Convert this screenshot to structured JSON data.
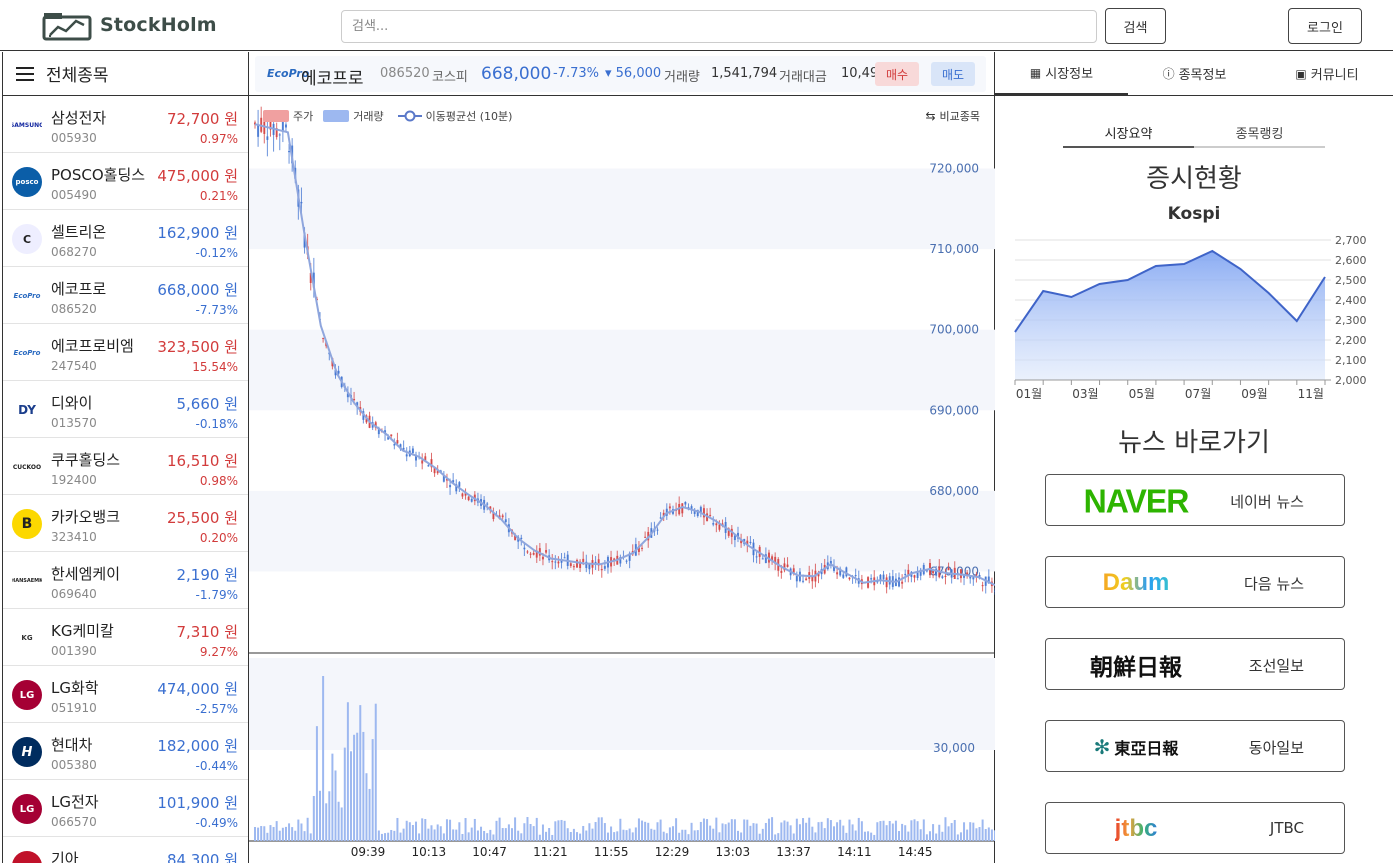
{
  "app": {
    "name": "StockHolm"
  },
  "header": {
    "search_placeholder": "검색...",
    "search_button": "검색",
    "login_button": "로그인"
  },
  "sidebar": {
    "title": "전체종목",
    "items": [
      {
        "name": "삼성전자",
        "code": "005930",
        "price": "72,700 원",
        "rate": "0.97%",
        "dir": "up",
        "logo": "SAMSUNG"
      },
      {
        "name": "POSCO홀딩스",
        "code": "005490",
        "price": "475,000 원",
        "rate": "0.21%",
        "dir": "up",
        "logo": "posco"
      },
      {
        "name": "셀트리온",
        "code": "068270",
        "price": "162,900 원",
        "rate": "-0.12%",
        "dir": "down",
        "logo": "C"
      },
      {
        "name": "에코프로",
        "code": "086520",
        "price": "668,000 원",
        "rate": "-7.73%",
        "dir": "down",
        "logo": "EcoPro"
      },
      {
        "name": "에코프로비엠",
        "code": "247540",
        "price": "323,500 원",
        "rate": "15.54%",
        "dir": "up",
        "logo": "EcoPro"
      },
      {
        "name": "디와이",
        "code": "013570",
        "price": "5,660 원",
        "rate": "-0.18%",
        "dir": "down",
        "logo": "DY"
      },
      {
        "name": "쿠쿠홀딩스",
        "code": "192400",
        "price": "16,510 원",
        "rate": "0.98%",
        "dir": "up",
        "logo": "CUCKOO"
      },
      {
        "name": "카카오뱅크",
        "code": "323410",
        "price": "25,500 원",
        "rate": "0.20%",
        "dir": "up",
        "logo": "B"
      },
      {
        "name": "한세엠케이",
        "code": "069640",
        "price": "2,190 원",
        "rate": "-1.79%",
        "dir": "down",
        "logo": "HANSAEMK"
      },
      {
        "name": "KG케미칼",
        "code": "001390",
        "price": "7,310 원",
        "rate": "9.27%",
        "dir": "up",
        "logo": "KG"
      },
      {
        "name": "LG화학",
        "code": "051910",
        "price": "474,000 원",
        "rate": "-2.57%",
        "dir": "down",
        "logo": "LG"
      },
      {
        "name": "현대차",
        "code": "005380",
        "price": "182,000 원",
        "rate": "-0.44%",
        "dir": "down",
        "logo": "H"
      },
      {
        "name": "LG전자",
        "code": "066570",
        "price": "101,900 원",
        "rate": "-0.49%",
        "dir": "down",
        "logo": "LG"
      },
      {
        "name": "기아",
        "code": "",
        "price": "84,300 원",
        "rate": "",
        "dir": "down",
        "logo": "KIA"
      }
    ]
  },
  "ticker": {
    "logo": "EcoPro",
    "name": "에코프로",
    "code": "086520",
    "market": "코스피",
    "price": "668,000",
    "rate": "-7.73%",
    "change": "▾ 56,000",
    "volume_label": "거래량",
    "volume": "1,541,794",
    "amount_label": "거래대금",
    "amount": "10,490",
    "buy": "매수",
    "sell": "매도"
  },
  "chart_legend": {
    "price": "주가",
    "volume": "거래량",
    "ma": "이동평균선 (10분)",
    "compare": "비교종목"
  },
  "chart_data": [
    {
      "type": "line",
      "series": [
        {
          "name": "주가",
          "kind": "candlestick"
        },
        {
          "name": "이동평균선 (10분)",
          "values": [
            725500,
            725000,
            724500,
            712000,
            700500,
            694500,
            691000,
            688500,
            687000,
            685000,
            684200,
            682800,
            681000,
            679500,
            678200,
            676400,
            674100,
            672600,
            671600,
            671300,
            671000,
            670900,
            671400,
            672300,
            674400,
            677200,
            678000,
            677400,
            676300,
            674900,
            673200,
            671900,
            670600,
            669500,
            669400,
            670900,
            669700,
            668600,
            668900,
            668700,
            669800,
            670300,
            669800,
            669600,
            669300,
            668300
          ]
        },
        {
          "name": "거래량",
          "kind": "bar"
        }
      ],
      "x_ticks": [
        "09:39",
        "10:13",
        "10:47",
        "11:21",
        "11:55",
        "12:29",
        "13:03",
        "13:37",
        "14:11",
        "14:45"
      ],
      "y_ticks": [
        "720,000",
        "710,000",
        "700,000",
        "690,000",
        "680,000",
        "670,000"
      ],
      "ylim": [
        660000,
        729000
      ],
      "volume_y_ticks": [
        "30,000"
      ]
    },
    {
      "type": "area",
      "title": "Kospi",
      "categories": [
        "01월",
        "02월",
        "03월",
        "04월",
        "05월",
        "06월",
        "07월",
        "08월",
        "09월",
        "10월",
        "11월",
        "12월"
      ],
      "x_ticks": [
        "01월",
        "03월",
        "05월",
        "07월",
        "09월",
        "11월"
      ],
      "values": [
        2240,
        2445,
        2415,
        2480,
        2500,
        2570,
        2580,
        2645,
        2555,
        2435,
        2295,
        2515
      ],
      "ylim": [
        2000,
        2700
      ],
      "y_ticks": [
        "2,700",
        "2,600",
        "2,500",
        "2,400",
        "2,300",
        "2,200",
        "2,100",
        "2,000"
      ],
      "color": "#3f64c8"
    }
  ],
  "right": {
    "tabs": [
      "시장정보",
      "종목정보",
      "커뮤니티"
    ],
    "subtabs": [
      "시장요약",
      "종목랭킹"
    ],
    "market_title": "증시현황",
    "news_title": "뉴스 바로가기",
    "news": [
      {
        "logo": "NAVER",
        "label": "네이버 뉴스"
      },
      {
        "logo": "Daum",
        "label": "다음 뉴스"
      },
      {
        "logo": "朝鮮日報",
        "label": "조선일보"
      },
      {
        "logo": "東亞日報",
        "label": "동아일보"
      },
      {
        "logo": "JTBC",
        "label": "JTBC"
      }
    ]
  },
  "colors": {
    "up": "#d23b3b",
    "down": "#3a6fd0",
    "accent": "#3d4d48"
  }
}
